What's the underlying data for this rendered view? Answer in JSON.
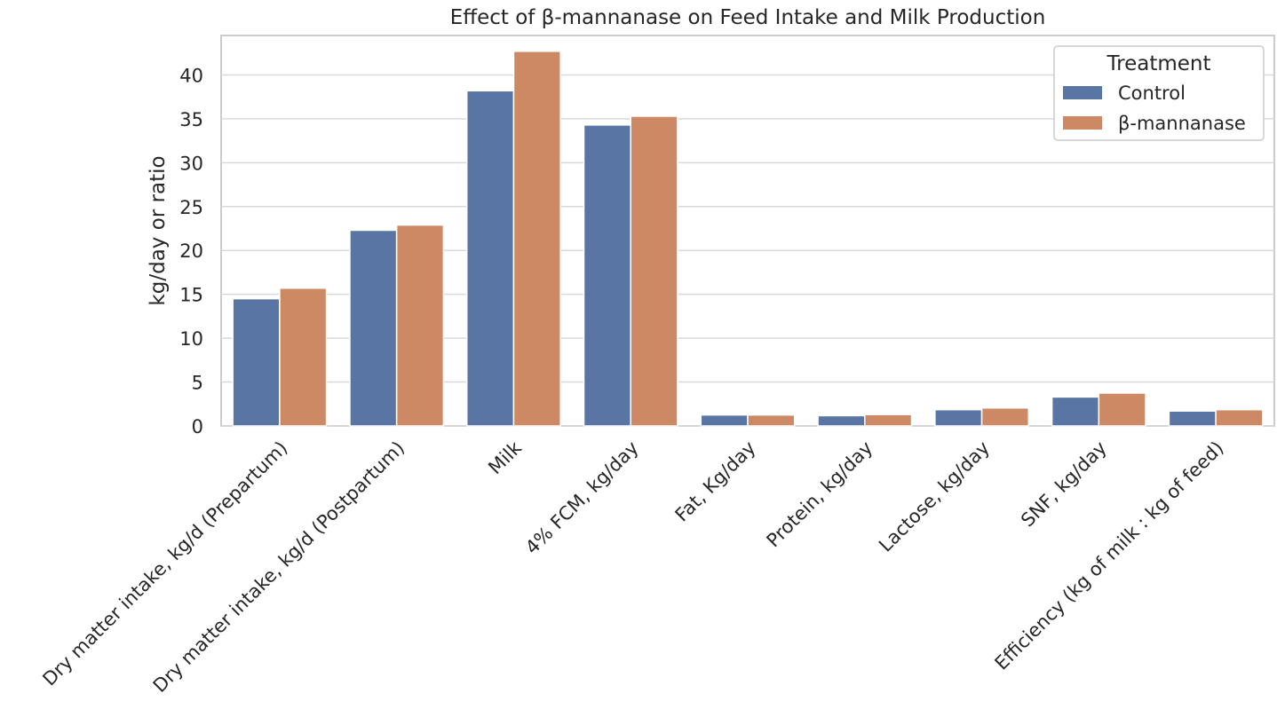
{
  "chart_data": {
    "type": "bar",
    "title": "Effect of β-mannanase on Feed Intake and Milk Production",
    "xlabel": "",
    "ylabel": "kg/day or ratio",
    "ylim": [
      0,
      44.5
    ],
    "yticks": [
      0,
      5,
      10,
      15,
      20,
      25,
      30,
      35,
      40
    ],
    "grid": true,
    "legend": {
      "title": "Treatment",
      "position": "top-right"
    },
    "categories": [
      "Dry matter intake, kg/d (Prepartum)",
      "Dry matter intake, kg/d (Postpartum)",
      "Milk",
      "4% FCM, kg/day",
      "Fat, Kg/day",
      "Protein, kg/day",
      "Lactose, kg/day",
      "SNF, kg/day",
      "Efficiency (kg of milk : kg of feed)"
    ],
    "series": [
      {
        "name": "Control",
        "color": "#5875a4",
        "values": [
          14.5,
          22.3,
          38.2,
          34.3,
          1.25,
          1.17,
          1.85,
          3.3,
          1.7
        ]
      },
      {
        "name": "β-mannanase",
        "color": "#cc8963",
        "values": [
          15.7,
          22.9,
          42.7,
          35.3,
          1.25,
          1.3,
          2.05,
          3.75,
          1.85
        ]
      }
    ]
  }
}
